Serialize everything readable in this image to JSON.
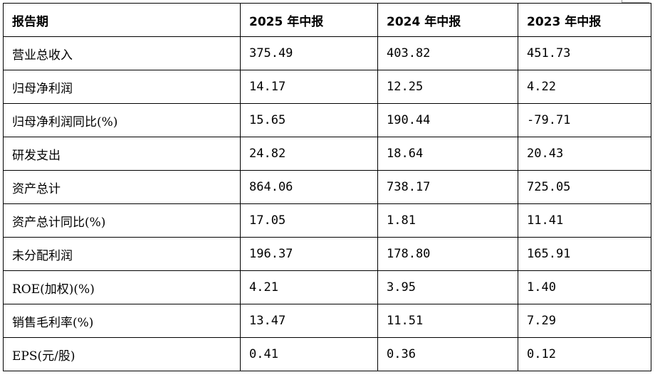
{
  "table": {
    "headers": [
      "报告期",
      "2025 年中报",
      "2024 年中报",
      "2023 年中报"
    ],
    "rows": [
      [
        "营业总收入",
        "375.49",
        "403.82",
        "451.73"
      ],
      [
        "归母净利润",
        "14.17",
        "12.25",
        "4.22"
      ],
      [
        "归母净利润同比(%)",
        "15.65",
        "190.44",
        "-79.71"
      ],
      [
        "研发支出",
        "24.82",
        "18.64",
        "20.43"
      ],
      [
        "资产总计",
        "864.06",
        "738.17",
        "725.05"
      ],
      [
        "资产总计同比(%)",
        "17.05",
        "1.81",
        "11.41"
      ],
      [
        "未分配利润",
        "196.37",
        "178.80",
        "165.91"
      ],
      [
        "ROE(加权)(%)",
        "4.21",
        "3.95",
        "1.40"
      ],
      [
        "销售毛利率(%)",
        "13.47",
        "11.51",
        "7.29"
      ],
      [
        "EPS(元/股)",
        "0.41",
        "0.36",
        "0.12"
      ]
    ]
  }
}
